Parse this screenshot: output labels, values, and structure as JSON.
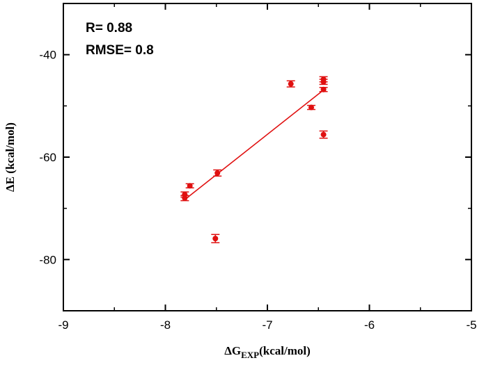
{
  "chart_data": {
    "type": "scatter",
    "xlim": [
      -9,
      -5
    ],
    "ylim": [
      -90,
      -30
    ],
    "xticks": [
      "-9",
      "-8",
      "-7",
      "-6",
      "-5"
    ],
    "yticks": [
      "-40",
      "-60",
      "-80"
    ],
    "xlabel": {
      "main": "ΔG",
      "sub": "EXP",
      "unit": "(kcal/mol)"
    },
    "ylabel": "ΔE (kcal/mol)",
    "annotations": [
      "R= 0.88",
      "RMSE= 0.8"
    ],
    "grid": false,
    "colors": {
      "series": "#e01010",
      "axis": "#000000"
    },
    "points": [
      {
        "x": -7.81,
        "y": -67.3,
        "err": 0.5
      },
      {
        "x": -7.81,
        "y": -68.0,
        "err": 0.5
      },
      {
        "x": -7.76,
        "y": -65.6,
        "err": 0.4
      },
      {
        "x": -7.51,
        "y": -75.9,
        "err": 0.8
      },
      {
        "x": -7.49,
        "y": -63.1,
        "err": 0.6
      },
      {
        "x": -6.77,
        "y": -45.7,
        "err": 0.6
      },
      {
        "x": -6.57,
        "y": -50.3,
        "err": 0.4
      },
      {
        "x": -6.45,
        "y": -44.8,
        "err": 0.5
      },
      {
        "x": -6.45,
        "y": -45.3,
        "err": 0.5
      },
      {
        "x": -6.45,
        "y": -46.8,
        "err": 0.4
      },
      {
        "x": -6.45,
        "y": -55.6,
        "err": 0.7
      }
    ],
    "fit_line": {
      "x": [
        -7.81,
        -6.45
      ],
      "y": [
        -68.3,
        -46.9
      ]
    }
  }
}
